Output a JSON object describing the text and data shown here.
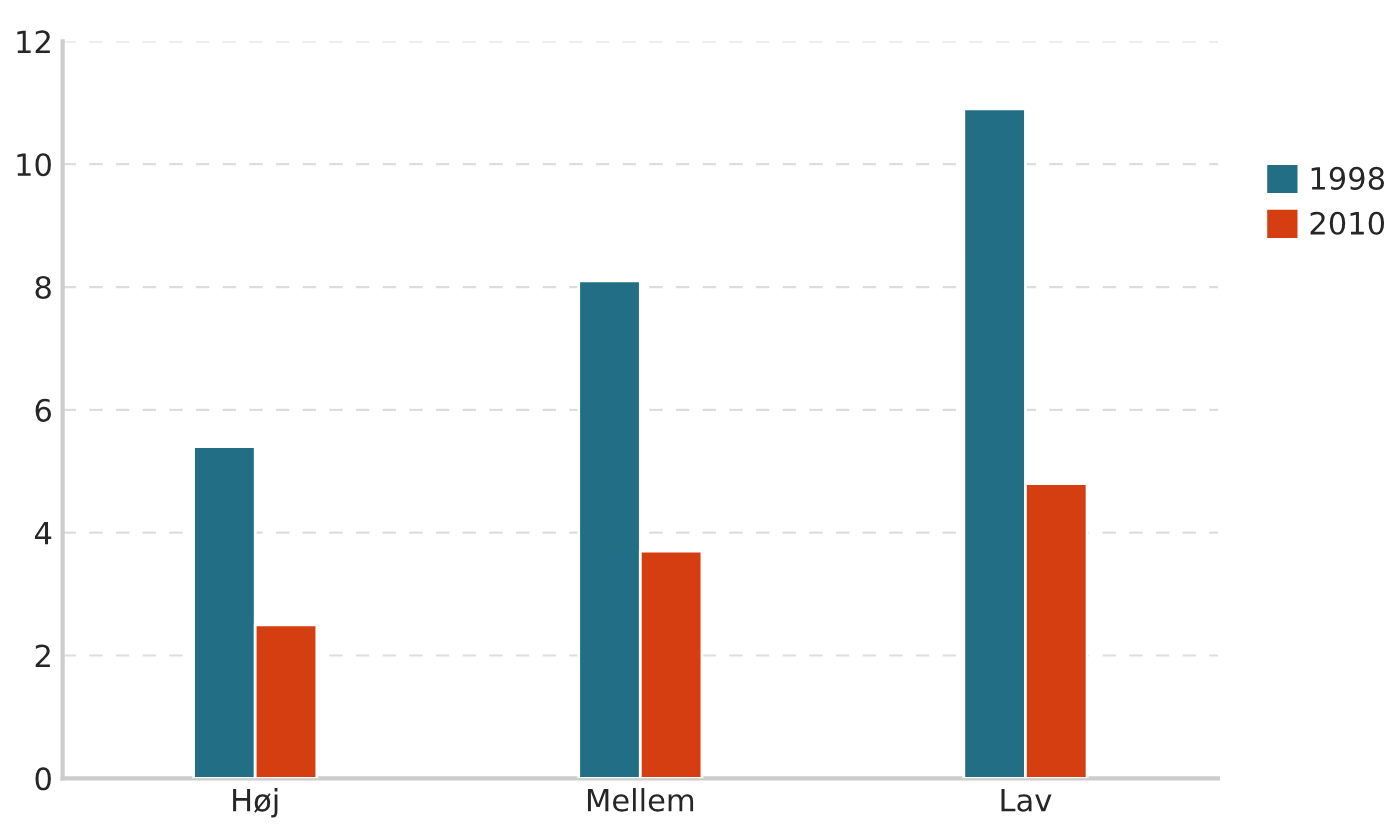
{
  "chart_data": {
    "type": "bar",
    "categories": [
      "Høj",
      "Mellem",
      "Lav"
    ],
    "series": [
      {
        "name": "1998",
        "color": "#216e85",
        "values": [
          5.4,
          8.1,
          10.9
        ]
      },
      {
        "name": "2010",
        "color": "#d53e10",
        "values": [
          2.5,
          3.7,
          4.8
        ]
      }
    ],
    "ylim": [
      0,
      12
    ],
    "yticks": [
      0,
      2,
      4,
      6,
      8,
      10,
      12
    ],
    "grid": "y",
    "legend": "right"
  }
}
